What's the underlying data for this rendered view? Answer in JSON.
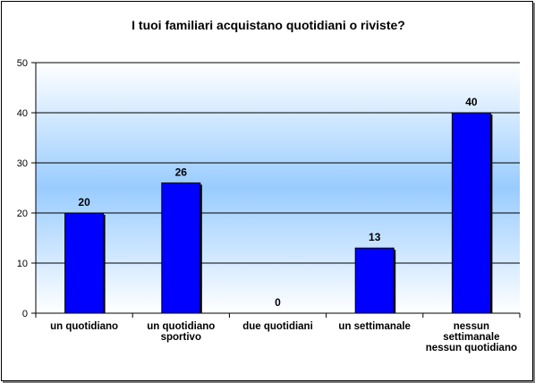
{
  "chart_data": {
    "type": "bar",
    "title": "I tuoi familiari acquistano quotidiani o riviste?",
    "categories": [
      [
        "un quotidiano"
      ],
      [
        "un quotidiano",
        "sportivo"
      ],
      [
        "due quotidiani"
      ],
      [
        "un settimanale"
      ],
      [
        "nessun",
        "settimanale",
        "nessun quotidiano"
      ]
    ],
    "values": [
      20,
      26,
      0,
      13,
      40
    ],
    "ylim": [
      0,
      50
    ],
    "yticks": [
      0,
      10,
      20,
      30,
      40,
      50
    ],
    "grid": true,
    "legend": "none",
    "data_labels": true,
    "colors": {
      "bar_fill": "#0000ff",
      "bar_stroke": "#000000",
      "plot_gradient_edge": "#ffffff",
      "plot_gradient_center": "#99ccff",
      "gridline": "#000000"
    }
  }
}
